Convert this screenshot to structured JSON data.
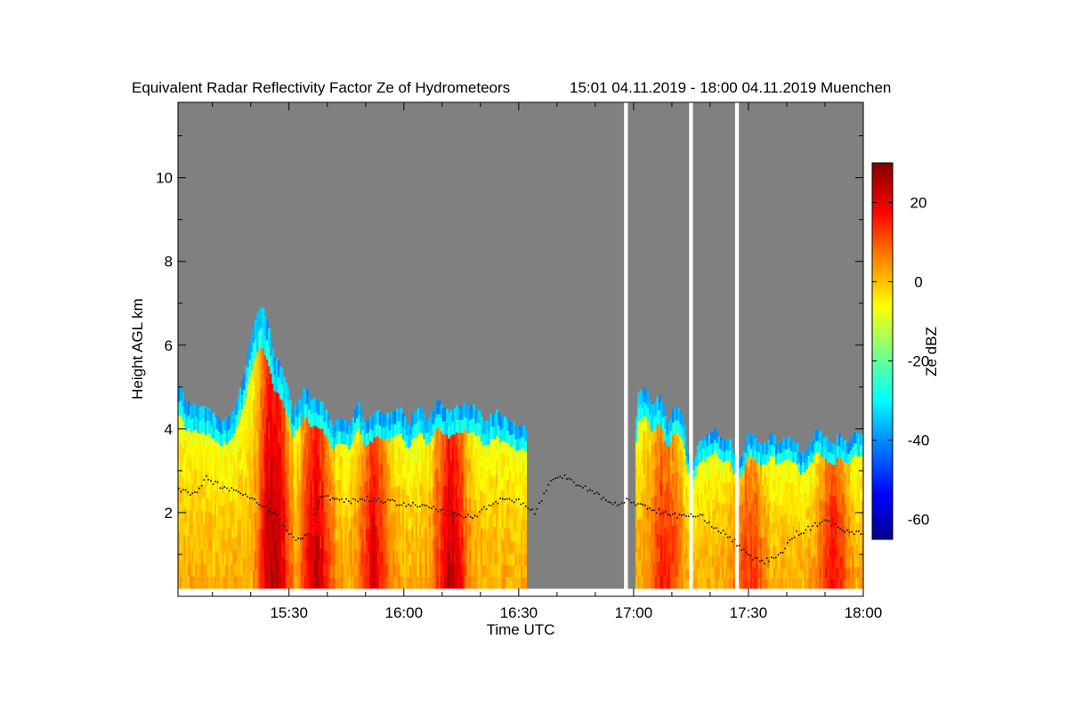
{
  "chart_data": {
    "type": "heatmap",
    "title": "Equivalent Radar Reflectivity Factor Ze of Hydrometeors",
    "subtitle": "15:01 04.11.2019 - 18:00 04.11.2019 Muenchen",
    "xlabel": "Time UTC",
    "ylabel": "Height AGL km",
    "xlim_min": [
      901,
      1080
    ],
    "ylim_km": [
      0,
      11.8
    ],
    "x_ticks": [
      {
        "min": 930,
        "label": "15:30"
      },
      {
        "min": 960,
        "label": "16:00"
      },
      {
        "min": 990,
        "label": "16:30"
      },
      {
        "min": 1020,
        "label": "17:00"
      },
      {
        "min": 1050,
        "label": "17:30"
      },
      {
        "min": 1080,
        "label": "18:00"
      }
    ],
    "y_ticks": [
      {
        "value": 2,
        "label": "2"
      },
      {
        "value": 4,
        "label": "4"
      },
      {
        "value": 6,
        "label": "6"
      },
      {
        "value": 8,
        "label": "8"
      },
      {
        "value": 10,
        "label": "10"
      }
    ],
    "colorbar": {
      "label": "Ze dBZ",
      "range": [
        -65,
        30
      ],
      "ticks": [
        {
          "value": -60,
          "label": "-60"
        },
        {
          "value": -40,
          "label": "-40"
        },
        {
          "value": -20,
          "label": "-20"
        },
        {
          "value": 0,
          "label": "0"
        },
        {
          "value": 20,
          "label": "20"
        }
      ],
      "colors": [
        "#00008f",
        "#0000ff",
        "#0080ff",
        "#00ffff",
        "#80ff80",
        "#ffff00",
        "#ff8000",
        "#ff0000",
        "#800000"
      ]
    },
    "background_color": "#808080",
    "missing_color": "#ffffff",
    "data_gaps_min": [
      [
        1017.5,
        1018.5
      ],
      [
        1034.5,
        1035.5
      ],
      [
        1046.5,
        1047.5
      ]
    ],
    "echo_segments_min": [
      [
        901,
        992
      ],
      [
        1020.5,
        1080
      ]
    ],
    "echo_top_km": [
      [
        901,
        5.1
      ],
      [
        902,
        5.0
      ],
      [
        903,
        4.6
      ],
      [
        906,
        4.6
      ],
      [
        909,
        4.5
      ],
      [
        912,
        4.2
      ],
      [
        915,
        4.3
      ],
      [
        918,
        5.2
      ],
      [
        920,
        6.2
      ],
      [
        921,
        6.6
      ],
      [
        923,
        6.9
      ],
      [
        924,
        6.7
      ],
      [
        926,
        5.8
      ],
      [
        928,
        5.5
      ],
      [
        929,
        5.2
      ],
      [
        931,
        4.4
      ],
      [
        934,
        5.0
      ],
      [
        936,
        4.7
      ],
      [
        939,
        4.6
      ],
      [
        941,
        4.1
      ],
      [
        944,
        4.3
      ],
      [
        946,
        4.1
      ],
      [
        948,
        4.7
      ],
      [
        950,
        4.1
      ],
      [
        953,
        4.5
      ],
      [
        956,
        4.3
      ],
      [
        959,
        4.5
      ],
      [
        961,
        4.1
      ],
      [
        964,
        4.6
      ],
      [
        966,
        4.2
      ],
      [
        969,
        4.7
      ],
      [
        971,
        4.4
      ],
      [
        974,
        4.6
      ],
      [
        976,
        4.6
      ],
      [
        979,
        4.5
      ],
      [
        981,
        4.2
      ],
      [
        984,
        4.4
      ],
      [
        986,
        4.3
      ],
      [
        989,
        4.1
      ],
      [
        992,
        4.0
      ],
      [
        1020.5,
        3.9
      ],
      [
        1021,
        4.8
      ],
      [
        1023,
        5.0
      ],
      [
        1025,
        4.6
      ],
      [
        1027,
        4.8
      ],
      [
        1029,
        4.1
      ],
      [
        1031,
        4.6
      ],
      [
        1033,
        4.3
      ],
      [
        1034,
        3.4
      ],
      [
        1036,
        3.2
      ],
      [
        1037,
        3.7
      ],
      [
        1039,
        3.8
      ],
      [
        1041,
        4.0
      ],
      [
        1043,
        3.7
      ],
      [
        1045,
        3.8
      ],
      [
        1046,
        3.4
      ],
      [
        1048,
        3.3
      ],
      [
        1050,
        3.9
      ],
      [
        1052,
        3.8
      ],
      [
        1054,
        3.6
      ],
      [
        1056,
        3.9
      ],
      [
        1058,
        3.6
      ],
      [
        1060,
        3.8
      ],
      [
        1062,
        3.7
      ],
      [
        1064,
        3.4
      ],
      [
        1066,
        3.6
      ],
      [
        1068,
        4.0
      ],
      [
        1070,
        3.8
      ],
      [
        1072,
        3.6
      ],
      [
        1074,
        3.9
      ],
      [
        1076,
        3.6
      ],
      [
        1078,
        4.0
      ],
      [
        1080,
        3.8
      ]
    ],
    "convective_cores": [
      {
        "center_min": 926,
        "ze_dbz": 26
      },
      {
        "center_min": 937,
        "ze_dbz": 22
      },
      {
        "center_min": 952,
        "ze_dbz": 20
      },
      {
        "center_min": 972,
        "ze_dbz": 24
      },
      {
        "center_min": 1028,
        "ze_dbz": 16
      },
      {
        "center_min": 1050,
        "ze_dbz": 14
      },
      {
        "center_min": 1072,
        "ze_dbz": 18
      }
    ],
    "cloud_base_km": [
      [
        901,
        2.55
      ],
      [
        905,
        2.45
      ],
      [
        908,
        2.85
      ],
      [
        912,
        2.65
      ],
      [
        916,
        2.55
      ],
      [
        920,
        2.35
      ],
      [
        924,
        2.15
      ],
      [
        927,
        1.9
      ],
      [
        929,
        1.6
      ],
      [
        932,
        1.35
      ],
      [
        935,
        1.5
      ],
      [
        938,
        2.4
      ],
      [
        942,
        2.35
      ],
      [
        946,
        2.3
      ],
      [
        950,
        2.35
      ],
      [
        954,
        2.3
      ],
      [
        958,
        2.25
      ],
      [
        962,
        2.2
      ],
      [
        966,
        2.15
      ],
      [
        970,
        2.05
      ],
      [
        974,
        1.95
      ],
      [
        978,
        1.9
      ],
      [
        982,
        2.2
      ],
      [
        986,
        2.35
      ],
      [
        990,
        2.3
      ],
      [
        994,
        2.0
      ],
      [
        998,
        2.75
      ],
      [
        1002,
        2.9
      ],
      [
        1006,
        2.65
      ],
      [
        1010,
        2.5
      ],
      [
        1014,
        2.2
      ],
      [
        1018,
        2.3
      ],
      [
        1022,
        2.2
      ],
      [
        1026,
        2.05
      ],
      [
        1030,
        1.95
      ],
      [
        1034,
        1.95
      ],
      [
        1038,
        1.9
      ],
      [
        1042,
        1.6
      ],
      [
        1046,
        1.35
      ],
      [
        1050,
        0.95
      ],
      [
        1054,
        0.85
      ],
      [
        1058,
        1.0
      ],
      [
        1062,
        1.5
      ],
      [
        1066,
        1.65
      ],
      [
        1070,
        1.85
      ],
      [
        1074,
        1.6
      ],
      [
        1078,
        1.55
      ]
    ]
  }
}
